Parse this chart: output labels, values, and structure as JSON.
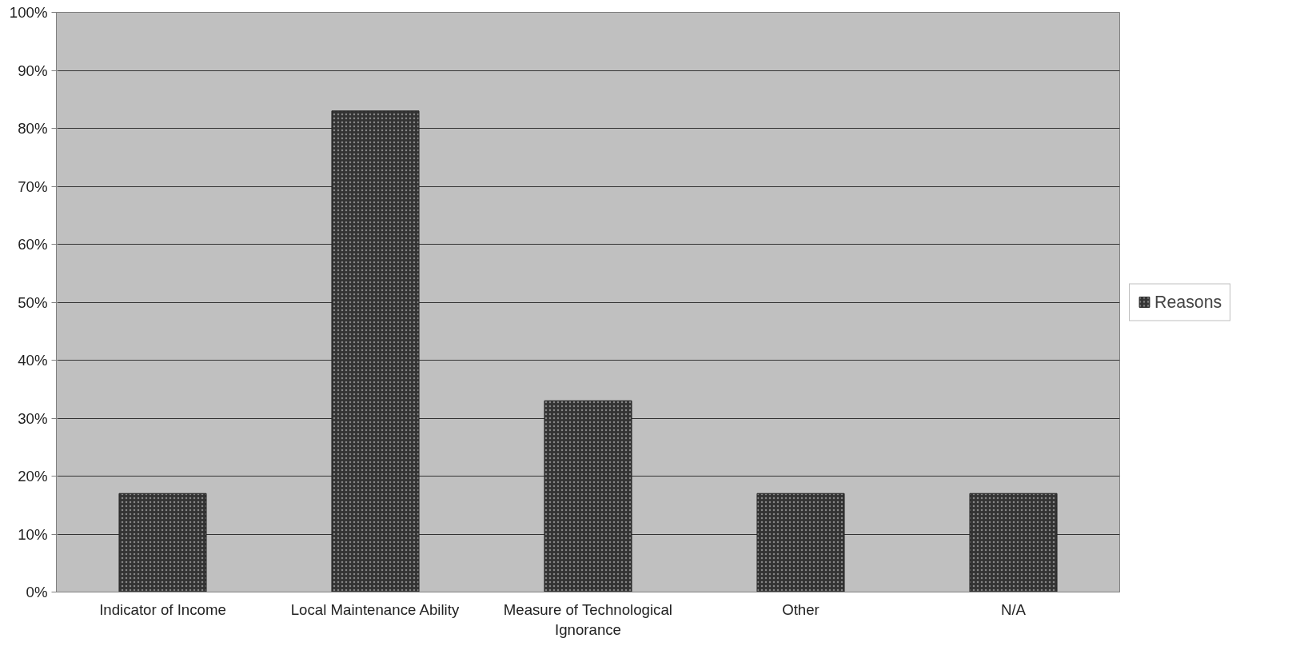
{
  "chart_data": {
    "type": "bar",
    "categories": [
      "Indicator of Income",
      "Local Maintenance Ability",
      "Measure of Technological Ignorance",
      "Other",
      "N/A"
    ],
    "series": [
      {
        "name": "Reasons",
        "color": "#333333",
        "values": [
          17,
          83,
          33,
          17,
          17
        ]
      }
    ],
    "ylim": [
      0,
      100
    ],
    "yticks": [
      {
        "value": 0,
        "label": "0%"
      },
      {
        "value": 10,
        "label": "10%"
      },
      {
        "value": 20,
        "label": "20%"
      },
      {
        "value": 30,
        "label": "30%"
      },
      {
        "value": 40,
        "label": "40%"
      },
      {
        "value": 50,
        "label": "50%"
      },
      {
        "value": 60,
        "label": "60%"
      },
      {
        "value": 70,
        "label": "70%"
      },
      {
        "value": 80,
        "label": "80%"
      },
      {
        "value": 90,
        "label": "90%"
      },
      {
        "value": 100,
        "label": "100%"
      }
    ],
    "grid": "y",
    "legend": "right"
  }
}
